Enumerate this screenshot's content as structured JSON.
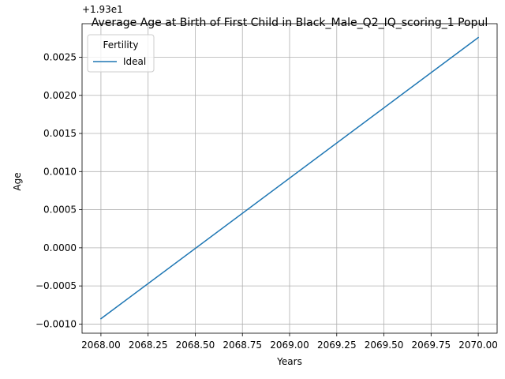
{
  "chart_data": {
    "type": "line",
    "title": "Average Age at Birth of First Child in Black_Male_Q2_IQ_scoring_1 Popul",
    "xlabel": "Years",
    "ylabel": "Age",
    "y_offset_label": "+1.93e1",
    "x": [
      2068,
      2070
    ],
    "series": [
      {
        "name": "Ideal",
        "values": [
          19.29907,
          19.302758
        ],
        "color": "#1f77b4"
      }
    ],
    "xlim": [
      2067.9,
      2070.1
    ],
    "ylim_offset": [
      -0.00112,
      0.00294
    ],
    "x_ticks": [
      2068.0,
      2068.25,
      2068.5,
      2068.75,
      2069.0,
      2069.25,
      2069.5,
      2069.75,
      2070.0
    ],
    "x_tick_labels": [
      "2068.00",
      "2068.25",
      "2068.50",
      "2068.75",
      "2069.00",
      "2069.25",
      "2069.50",
      "2069.75",
      "2070.00"
    ],
    "y_ticks_offset": [
      -0.001,
      -0.0005,
      0.0,
      0.0005,
      0.001,
      0.0015,
      0.002,
      0.0025
    ],
    "y_tick_labels": [
      "−0.0010",
      "−0.0005",
      "0.0000",
      "0.0005",
      "0.0010",
      "0.0015",
      "0.0020",
      "0.0025"
    ],
    "grid": true,
    "legend": {
      "title": "Fertility",
      "placement": "top-left"
    }
  }
}
